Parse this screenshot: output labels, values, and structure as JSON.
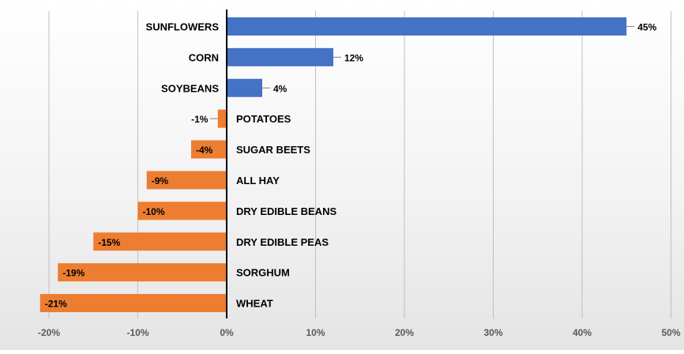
{
  "chart_data": {
    "type": "bar",
    "orientation": "horizontal",
    "categories": [
      "SUNFLOWERS",
      "CORN",
      "SOYBEANS",
      "POTATOES",
      "SUGAR BEETS",
      "ALL HAY",
      "DRY EDIBLE BEANS",
      "DRY EDIBLE PEAS",
      "SORGHUM",
      "WHEAT"
    ],
    "values": [
      45,
      12,
      4,
      -1,
      -4,
      -9,
      -10,
      -15,
      -19,
      -21
    ],
    "value_labels": [
      "45%",
      "12%",
      "4%",
      "-1%",
      "-4%",
      "-9%",
      "-10%",
      "-15%",
      "-19%",
      "-21%"
    ],
    "xticks": [
      "-20%",
      "-10%",
      "0%",
      "10%",
      "20%",
      "30%",
      "40%",
      "50%"
    ],
    "xlim": [
      -21.5,
      50
    ],
    "grid": true,
    "legend": "none",
    "title": "",
    "xlabel": "",
    "ylabel": "",
    "colors": {
      "positive": "#4472C4",
      "negative": "#ED7D31",
      "axis": "#000000",
      "grid": "#bfbfbf"
    }
  }
}
